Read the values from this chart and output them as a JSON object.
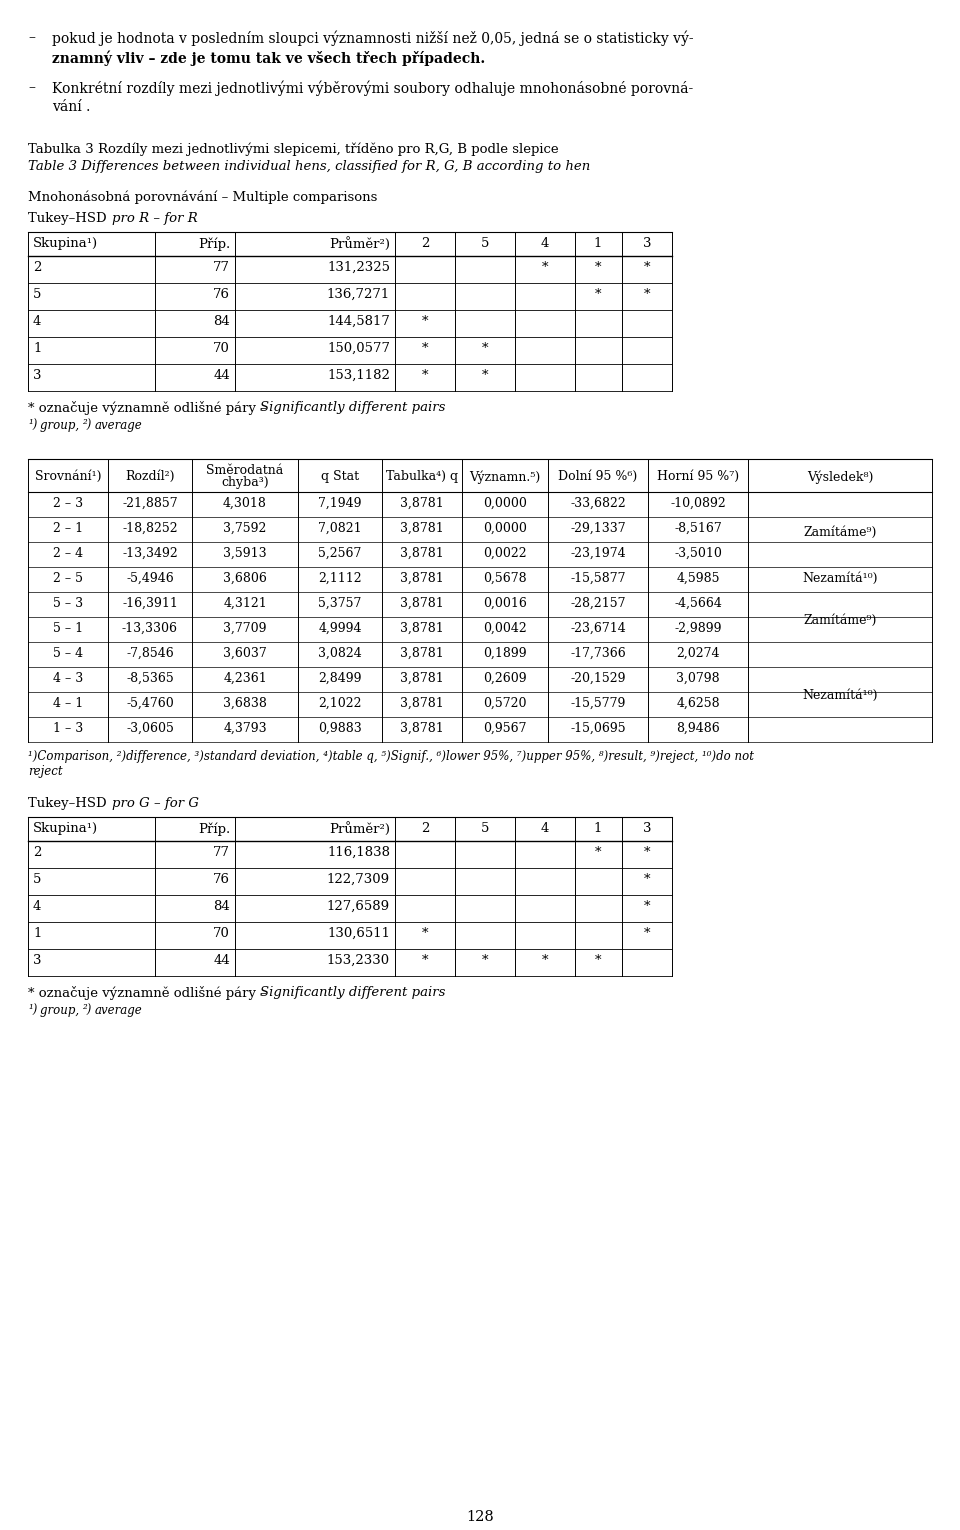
{
  "bg_color": "#ffffff",
  "text_color": "#000000",
  "page_number": "128",
  "table_caption_cz": "Tabulka 3 Rozdíly mezi jednotlivými slepicemi, tříděno pro R,G, B podle slepice",
  "table_caption_en": "Table 3 Differences between individual hens, classified for R, G, B according to hen",
  "section_label": "Mnohonásobná porovnávání – Multiple comparisons",
  "tukey_r_rows": [
    [
      "2",
      "77",
      "131,2325",
      "",
      "",
      "*",
      "*",
      "*"
    ],
    [
      "5",
      "76",
      "136,7271",
      "",
      "",
      "",
      "*",
      "*"
    ],
    [
      "4",
      "84",
      "144,5817",
      "*",
      "",
      "",
      "",
      ""
    ],
    [
      "1",
      "70",
      "150,0577",
      "*",
      "*",
      "",
      "",
      ""
    ],
    [
      "3",
      "44",
      "153,1182",
      "*",
      "*",
      "",
      "",
      ""
    ]
  ],
  "big_table_rows": [
    [
      "2 – 3",
      "-21,8857",
      "4,3018",
      "7,1949",
      "3,8781",
      "0,0000",
      "-33,6822",
      "-10,0892",
      ""
    ],
    [
      "2 – 1",
      "-18,8252",
      "3,7592",
      "7,0821",
      "3,8781",
      "0,0000",
      "-29,1337",
      "-8,5167",
      "Zamítáme⁹)"
    ],
    [
      "2 – 4",
      "-13,3492",
      "3,5913",
      "5,2567",
      "3,8781",
      "0,0022",
      "-23,1974",
      "-3,5010",
      ""
    ],
    [
      "2 – 5",
      "-5,4946",
      "3,6806",
      "2,1112",
      "3,8781",
      "0,5678",
      "-15,5877",
      "4,5985",
      "Nezamítá¹⁰)"
    ],
    [
      "5 – 3",
      "-16,3911",
      "4,3121",
      "5,3757",
      "3,8781",
      "0,0016",
      "-28,2157",
      "-4,5664",
      ""
    ],
    [
      "5 – 1",
      "-13,3306",
      "3,7709",
      "4,9994",
      "3,8781",
      "0,0042",
      "-23,6714",
      "-2,9899",
      "Zamítáme⁹)"
    ],
    [
      "5 – 4",
      "-7,8546",
      "3,6037",
      "3,0824",
      "3,8781",
      "0,1899",
      "-17,7366",
      "2,0274",
      ""
    ],
    [
      "4 – 3",
      "-8,5365",
      "4,2361",
      "2,8499",
      "3,8781",
      "0,2609",
      "-20,1529",
      "3,0798",
      ""
    ],
    [
      "4 – 1",
      "-5,4760",
      "3,6838",
      "2,1022",
      "3,8781",
      "0,5720",
      "-15,5779",
      "4,6258",
      "Nezamítá¹⁰)"
    ],
    [
      "1 – 3",
      "-3,0605",
      "4,3793",
      "0,9883",
      "3,8781",
      "0,9567",
      "-15,0695",
      "8,9486",
      ""
    ]
  ],
  "tukey_g_rows": [
    [
      "2",
      "77",
      "116,1838",
      "",
      "",
      "",
      "*",
      "*"
    ],
    [
      "5",
      "76",
      "122,7309",
      "",
      "",
      "",
      "",
      "*"
    ],
    [
      "4",
      "84",
      "127,6589",
      "",
      "",
      "",
      "",
      "*"
    ],
    [
      "1",
      "70",
      "130,6511",
      "*",
      "",
      "",
      "",
      "*"
    ],
    [
      "3",
      "44",
      "153,2330",
      "*",
      "*",
      "*",
      "*",
      ""
    ]
  ]
}
